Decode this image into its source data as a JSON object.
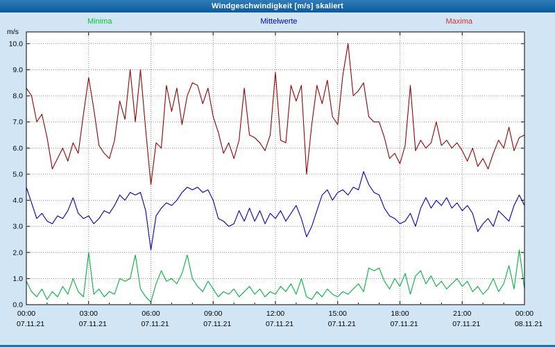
{
  "window": {
    "title": "Windgeschwindigkeit [m/s] skaliert"
  },
  "chart_data": {
    "type": "line",
    "title": "Windgeschwindigkeit [m/s] skaliert",
    "xlabel": "",
    "ylabel": "m/s",
    "ylim": [
      0,
      10.45
    ],
    "grid": true,
    "legend_position": "top",
    "y_ticks": [
      "0.0",
      "1.0",
      "2.0",
      "3.0",
      "4.0",
      "5.0",
      "6.0",
      "7.0",
      "8.0",
      "9.0",
      "10.0"
    ],
    "x_ticks": [
      {
        "time": "00:00",
        "date": "07.11.21"
      },
      {
        "time": "03:00",
        "date": "07.11.21"
      },
      {
        "time": "06:00",
        "date": "07.11.21"
      },
      {
        "time": "09:00",
        "date": "07.11.21"
      },
      {
        "time": "12:00",
        "date": "07.11.21"
      },
      {
        "time": "15:00",
        "date": "07.11.21"
      },
      {
        "time": "18:00",
        "date": "07.11.21"
      },
      {
        "time": "21:00",
        "date": "07.11.21"
      },
      {
        "time": "00:00",
        "date": "08.11.21"
      }
    ],
    "series": [
      {
        "name": "Minima",
        "color": "#00b43c",
        "legend_color": "#00c832",
        "values": [
          0.9,
          0.5,
          0.3,
          0.6,
          0.2,
          0.5,
          0.3,
          0.7,
          0.4,
          1.0,
          0.5,
          0.3,
          2.0,
          0.4,
          0.6,
          0.3,
          0.5,
          0.4,
          1.0,
          0.9,
          1.0,
          1.9,
          0.6,
          0.3,
          0.1,
          0.8,
          1.3,
          0.9,
          1.0,
          0.8,
          1.2,
          1.9,
          1.0,
          0.7,
          0.5,
          0.9,
          0.6,
          0.3,
          0.5,
          0.4,
          0.6,
          0.3,
          0.5,
          0.7,
          0.4,
          0.6,
          0.3,
          0.5,
          0.4,
          0.7,
          0.5,
          0.8,
          0.4,
          1.0,
          0.3,
          0.2,
          0.5,
          0.3,
          0.6,
          0.4,
          0.3,
          0.5,
          0.4,
          0.6,
          0.8,
          0.5,
          1.4,
          1.3,
          1.4,
          0.9,
          0.6,
          1.0,
          0.7,
          1.2,
          0.4,
          1.1,
          1.3,
          0.8,
          1.1,
          0.7,
          0.9,
          0.6,
          0.8,
          1.0,
          0.7,
          0.9,
          0.5,
          0.7,
          0.4,
          0.6,
          1.0,
          0.5,
          0.8,
          1.5,
          0.6,
          2.1,
          0.6
        ]
      },
      {
        "name": "Mittelwerte",
        "color": "#0000b4",
        "legend_color": "#0000c8",
        "values": [
          4.5,
          3.9,
          3.3,
          3.5,
          3.2,
          3.1,
          3.4,
          3.3,
          3.6,
          4.1,
          3.5,
          3.3,
          3.4,
          3.1,
          3.3,
          3.6,
          3.5,
          3.8,
          4.2,
          4.0,
          4.3,
          4.2,
          4.3,
          3.6,
          2.1,
          3.4,
          3.7,
          3.9,
          3.8,
          4.0,
          4.3,
          4.5,
          4.4,
          4.5,
          4.3,
          4.4,
          4.0,
          3.3,
          3.2,
          3.0,
          3.1,
          3.6,
          3.2,
          3.7,
          3.2,
          3.6,
          3.1,
          3.5,
          3.3,
          3.6,
          3.2,
          3.5,
          3.8,
          3.3,
          2.6,
          3.0,
          3.6,
          4.2,
          4.4,
          4.0,
          4.3,
          4.4,
          4.2,
          4.5,
          4.4,
          5.1,
          4.6,
          4.3,
          4.2,
          3.7,
          3.4,
          3.3,
          3.1,
          3.2,
          3.5,
          3.0,
          3.7,
          4.1,
          3.7,
          4.0,
          3.8,
          4.1,
          3.7,
          3.9,
          3.6,
          3.8,
          3.5,
          2.8,
          3.1,
          3.3,
          3.0,
          3.6,
          3.4,
          3.2,
          3.8,
          4.2,
          3.8
        ]
      },
      {
        "name": "Maxima",
        "color": "#960000",
        "legend_color": "#cd3333",
        "values": [
          8.3,
          8.0,
          7.0,
          7.3,
          6.4,
          5.2,
          5.6,
          6.0,
          5.5,
          6.2,
          5.8,
          7.3,
          8.7,
          7.5,
          6.1,
          5.8,
          5.6,
          6.3,
          7.8,
          7.1,
          9.0,
          7.0,
          9.0,
          6.7,
          4.6,
          6.2,
          6.0,
          8.4,
          7.4,
          8.3,
          6.9,
          8.0,
          8.5,
          8.4,
          7.7,
          8.3,
          7.2,
          6.6,
          5.8,
          6.2,
          5.6,
          6.3,
          8.3,
          6.5,
          6.4,
          6.2,
          5.9,
          6.5,
          8.9,
          6.3,
          6.2,
          8.4,
          7.8,
          8.4,
          5.0,
          6.9,
          8.4,
          7.7,
          8.6,
          7.2,
          6.9,
          8.8,
          10.0,
          8.0,
          8.2,
          8.5,
          7.2,
          7.0,
          7.0,
          6.4,
          5.6,
          5.8,
          5.4,
          6.1,
          8.4,
          5.9,
          6.3,
          6.0,
          6.2,
          7.0,
          6.1,
          6.3,
          6.0,
          6.2,
          5.9,
          5.5,
          6.0,
          5.3,
          5.6,
          5.2,
          5.8,
          6.3,
          6.0,
          6.8,
          5.9,
          6.4,
          6.5
        ]
      }
    ]
  }
}
